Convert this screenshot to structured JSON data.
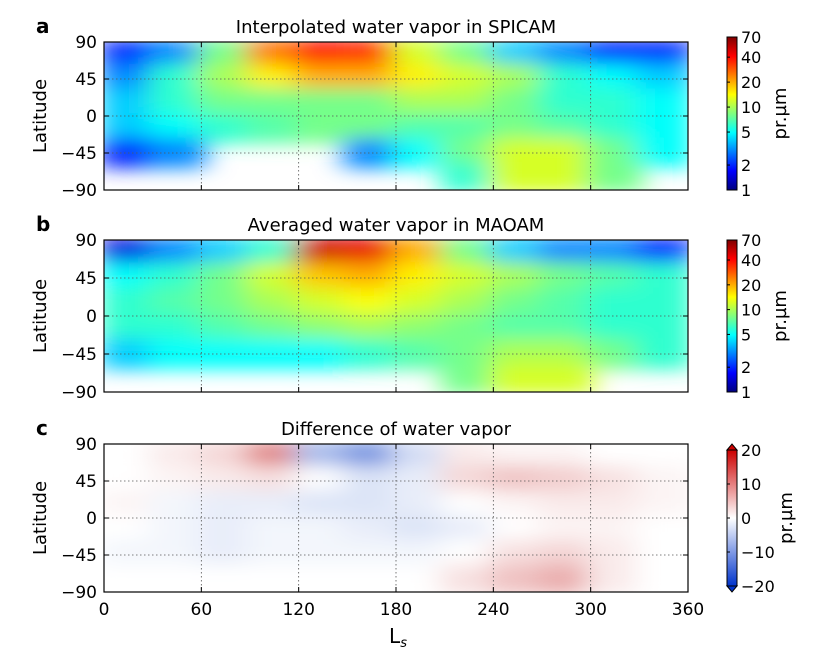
{
  "chart_data": [
    {
      "type": "heatmap",
      "panel_label": "a",
      "title": "Interpolated water vapor in SPICAM",
      "ylabel": "Latitude",
      "xlabel": "",
      "xlim": [
        0,
        360
      ],
      "ylim": [
        -90,
        90
      ],
      "xticks": [
        0,
        60,
        120,
        180,
        240,
        300,
        360
      ],
      "yticks": [
        "90",
        "45",
        "0",
        "−45",
        "−90"
      ],
      "grid": true,
      "colormap": "jet",
      "color_scale": "log",
      "colorbar": {
        "label": "pr.µm",
        "ticks": [
          "70",
          "40",
          "20",
          "10",
          "5",
          "2",
          "1"
        ],
        "range": [
          1,
          70
        ]
      },
      "x_bins": [
        15,
        45,
        75,
        105,
        135,
        165,
        195,
        225,
        255,
        285,
        315,
        345
      ],
      "y_bins": [
        75,
        45,
        15,
        -15,
        -45,
        -75
      ],
      "values": [
        [
          2,
          3,
          8,
          25,
          40,
          35,
          12,
          8,
          4,
          3,
          2,
          2
        ],
        [
          3,
          6,
          10,
          15,
          20,
          20,
          15,
          12,
          10,
          6,
          5,
          4
        ],
        [
          4,
          6,
          8,
          8,
          8,
          8,
          10,
          10,
          8,
          6,
          6,
          5
        ],
        [
          4,
          5,
          6,
          7,
          8,
          8,
          7,
          7,
          8,
          7,
          6,
          5
        ],
        [
          2,
          3,
          null,
          null,
          null,
          3,
          5,
          8,
          12,
          12,
          8,
          5
        ],
        [
          null,
          null,
          null,
          null,
          null,
          null,
          null,
          6,
          12,
          12,
          8,
          null
        ]
      ]
    },
    {
      "type": "heatmap",
      "panel_label": "b",
      "title": "Averaged water vapor in MAOAM",
      "ylabel": "Latitude",
      "xlabel": "",
      "xlim": [
        0,
        360
      ],
      "ylim": [
        -90,
        90
      ],
      "xticks": [
        0,
        60,
        120,
        180,
        240,
        300,
        360
      ],
      "yticks": [
        "90",
        "45",
        "0",
        "−45",
        "−90"
      ],
      "grid": true,
      "colormap": "jet",
      "color_scale": "log",
      "colorbar": {
        "label": "pr.µm",
        "ticks": [
          "70",
          "40",
          "20",
          "10",
          "5",
          "2",
          "1"
        ],
        "range": [
          1,
          70
        ]
      },
      "x_bins": [
        15,
        45,
        75,
        105,
        135,
        165,
        195,
        225,
        255,
        285,
        315,
        345
      ],
      "y_bins": [
        75,
        45,
        15,
        -15,
        -45,
        -75
      ],
      "values": [
        [
          1.5,
          3,
          4,
          6,
          50,
          45,
          20,
          8,
          4,
          3,
          3,
          2
        ],
        [
          5,
          6,
          8,
          12,
          18,
          20,
          15,
          12,
          10,
          8,
          7,
          6
        ],
        [
          6,
          7,
          8,
          10,
          12,
          14,
          12,
          10,
          8,
          7,
          6,
          6
        ],
        [
          6,
          6,
          7,
          8,
          9,
          10,
          9,
          8,
          7,
          7,
          6,
          6
        ],
        [
          4,
          5,
          5,
          5,
          5,
          6,
          7,
          8,
          10,
          10,
          8,
          6
        ],
        [
          null,
          null,
          null,
          null,
          null,
          null,
          null,
          8,
          12,
          12,
          null,
          null
        ]
      ]
    },
    {
      "type": "heatmap",
      "panel_label": "c",
      "title": "Difference of water vapor",
      "ylabel": "Latitude",
      "xlabel": "L",
      "xlabel_sub": "s",
      "xlim": [
        0,
        360
      ],
      "ylim": [
        -90,
        90
      ],
      "xticks": [
        0,
        60,
        120,
        180,
        240,
        300,
        360
      ],
      "yticks": [
        "90",
        "45",
        "0",
        "−45",
        "−90"
      ],
      "grid": true,
      "colormap": "bwr",
      "color_scale": "linear",
      "colorbar": {
        "label": "pr.µm",
        "ticks": [
          "20",
          "10",
          "0",
          "−10",
          "−20"
        ],
        "range": [
          -20,
          20
        ]
      },
      "x_bins": [
        15,
        45,
        75,
        105,
        135,
        165,
        195,
        225,
        255,
        285,
        315,
        345
      ],
      "y_bins": [
        75,
        45,
        15,
        -15,
        -45,
        -75
      ],
      "values": [
        [
          0,
          2,
          4,
          12,
          -8,
          -12,
          -4,
          2,
          1,
          1,
          0,
          0
        ],
        [
          0,
          1,
          2,
          3,
          0,
          -3,
          -2,
          4,
          6,
          5,
          3,
          1
        ],
        [
          1,
          -1,
          -2,
          -2,
          -3,
          -3,
          -2,
          0,
          1,
          2,
          2,
          1
        ],
        [
          0,
          -1,
          -2,
          -1,
          -1,
          -2,
          -3,
          -2,
          0,
          1,
          1,
          0
        ],
        [
          -1,
          -1,
          -2,
          -1,
          -1,
          -1,
          -1,
          0,
          3,
          4,
          2,
          0
        ],
        [
          0,
          0,
          0,
          0,
          0,
          0,
          0,
          3,
          6,
          8,
          2,
          0
        ]
      ]
    }
  ]
}
